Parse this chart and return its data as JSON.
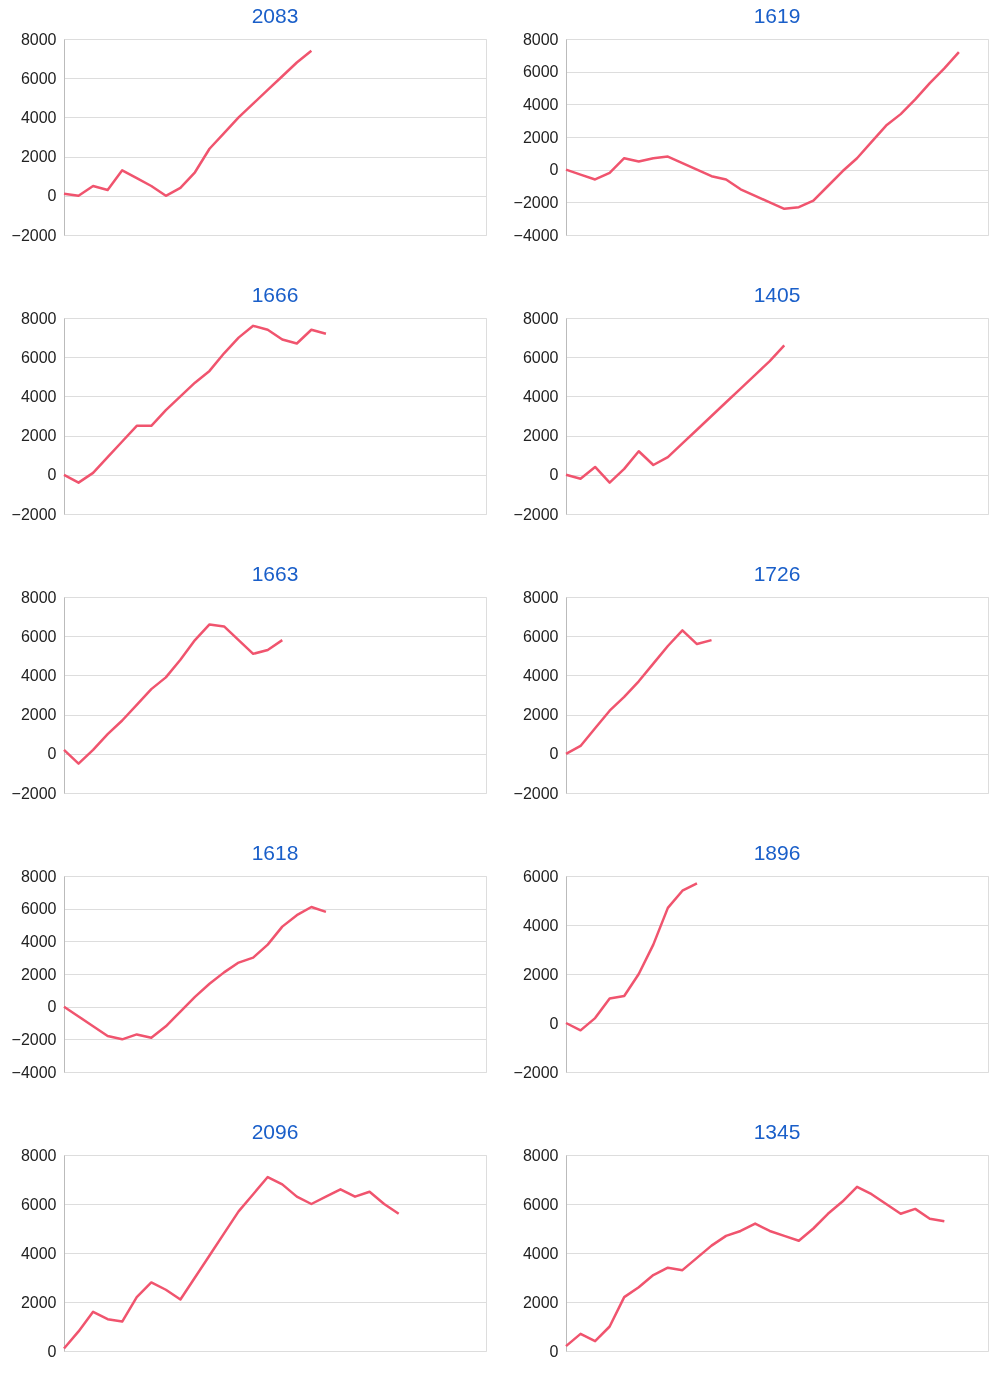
{
  "chart_data": [
    {
      "type": "line",
      "title": "2083",
      "categories": [
        null,
        null,
        null,
        null,
        null,
        null,
        null,
        null,
        null,
        null,
        null,
        null,
        null,
        null,
        null,
        null,
        null,
        null,
        null,
        null,
        null,
        null,
        null,
        null,
        null,
        null,
        null,
        null,
        null,
        null
      ],
      "ylim": [
        -2000,
        8000
      ],
      "yticks": [
        -2000,
        0,
        2000,
        4000,
        6000,
        8000
      ],
      "grid": "y",
      "tick_labels": "y",
      "series": [
        {
          "color": "#f0546e",
          "values": [
            100,
            0,
            500,
            300,
            1300,
            900,
            500,
            0,
            400,
            1200,
            2400,
            3200,
            4000,
            4700,
            5400,
            6100,
            6800,
            7400,
            null,
            null,
            null,
            null,
            null,
            null,
            null,
            null,
            null,
            null,
            null,
            null
          ]
        }
      ]
    },
    {
      "type": "line",
      "title": "1619",
      "categories": [
        null,
        null,
        null,
        null,
        null,
        null,
        null,
        null,
        null,
        null,
        null,
        null,
        null,
        null,
        null,
        null,
        null,
        null,
        null,
        null,
        null,
        null,
        null,
        null,
        null,
        null,
        null,
        null,
        null,
        null
      ],
      "ylim": [
        -4000,
        8000
      ],
      "yticks": [
        -4000,
        -2000,
        0,
        2000,
        4000,
        6000,
        8000
      ],
      "grid": "y",
      "tick_labels": "y",
      "series": [
        {
          "color": "#f0546e",
          "values": [
            0,
            -300,
            -600,
            -200,
            700,
            500,
            700,
            800,
            400,
            0,
            -400,
            -600,
            -1200,
            -1600,
            -2000,
            -2400,
            -2300,
            -1900,
            -1000,
            -100,
            700,
            1700,
            2700,
            3400,
            4300,
            5300,
            6200,
            7200,
            null,
            null
          ]
        }
      ]
    },
    {
      "type": "line",
      "title": "1666",
      "categories": [
        null,
        null,
        null,
        null,
        null,
        null,
        null,
        null,
        null,
        null,
        null,
        null,
        null,
        null,
        null,
        null,
        null,
        null,
        null,
        null,
        null,
        null,
        null,
        null,
        null,
        null,
        null,
        null,
        null,
        null
      ],
      "ylim": [
        -2000,
        8000
      ],
      "yticks": [
        -2000,
        0,
        2000,
        4000,
        6000,
        8000
      ],
      "grid": "y",
      "tick_labels": "y",
      "series": [
        {
          "color": "#f0546e",
          "values": [
            0,
            -400,
            100,
            900,
            1700,
            2500,
            2500,
            3300,
            4000,
            4700,
            5300,
            6200,
            7000,
            7600,
            7400,
            6900,
            6700,
            7400,
            7200,
            null,
            null,
            null,
            null,
            null,
            null,
            null,
            null,
            null,
            null,
            null
          ]
        }
      ]
    },
    {
      "type": "line",
      "title": "1405",
      "categories": [
        null,
        null,
        null,
        null,
        null,
        null,
        null,
        null,
        null,
        null,
        null,
        null,
        null,
        null,
        null,
        null,
        null,
        null,
        null,
        null,
        null,
        null,
        null,
        null,
        null,
        null,
        null,
        null,
        null,
        null
      ],
      "ylim": [
        -2000,
        8000
      ],
      "yticks": [
        -2000,
        0,
        2000,
        4000,
        6000,
        8000
      ],
      "grid": "y",
      "tick_labels": "y",
      "series": [
        {
          "color": "#f0546e",
          "values": [
            0,
            -200,
            400,
            -400,
            300,
            1200,
            500,
            900,
            1600,
            2300,
            3000,
            3700,
            4400,
            5100,
            5800,
            6600,
            null,
            null,
            null,
            null,
            null,
            null,
            null,
            null,
            null,
            null,
            null,
            null,
            null,
            null
          ]
        }
      ]
    },
    {
      "type": "line",
      "title": "1663",
      "categories": [
        null,
        null,
        null,
        null,
        null,
        null,
        null,
        null,
        null,
        null,
        null,
        null,
        null,
        null,
        null,
        null,
        null,
        null,
        null,
        null,
        null,
        null,
        null,
        null,
        null,
        null,
        null,
        null,
        null,
        null
      ],
      "ylim": [
        -2000,
        8000
      ],
      "yticks": [
        -2000,
        0,
        2000,
        4000,
        6000,
        8000
      ],
      "grid": "y",
      "tick_labels": "y",
      "series": [
        {
          "color": "#f0546e",
          "values": [
            200,
            -500,
            200,
            1000,
            1700,
            2500,
            3300,
            3900,
            4800,
            5800,
            6600,
            6500,
            5800,
            5100,
            5300,
            5800,
            null,
            null,
            null,
            null,
            null,
            null,
            null,
            null,
            null,
            null,
            null,
            null,
            null,
            null
          ]
        }
      ]
    },
    {
      "type": "line",
      "title": "1726",
      "categories": [
        null,
        null,
        null,
        null,
        null,
        null,
        null,
        null,
        null,
        null,
        null,
        null,
        null,
        null,
        null,
        null,
        null,
        null,
        null,
        null,
        null,
        null,
        null,
        null,
        null,
        null,
        null,
        null,
        null,
        null
      ],
      "ylim": [
        -2000,
        8000
      ],
      "yticks": [
        -2000,
        0,
        2000,
        4000,
        6000,
        8000
      ],
      "grid": "y",
      "tick_labels": "y",
      "series": [
        {
          "color": "#f0546e",
          "values": [
            0,
            400,
            1300,
            2200,
            2900,
            3700,
            4600,
            5500,
            6300,
            5600,
            5800,
            null,
            null,
            null,
            null,
            null,
            null,
            null,
            null,
            null,
            null,
            null,
            null,
            null,
            null,
            null,
            null,
            null,
            null,
            null
          ]
        }
      ]
    },
    {
      "type": "line",
      "title": "1618",
      "categories": [
        null,
        null,
        null,
        null,
        null,
        null,
        null,
        null,
        null,
        null,
        null,
        null,
        null,
        null,
        null,
        null,
        null,
        null,
        null,
        null,
        null,
        null,
        null,
        null,
        null,
        null,
        null,
        null,
        null,
        null
      ],
      "ylim": [
        -4000,
        8000
      ],
      "yticks": [
        -4000,
        -2000,
        0,
        2000,
        4000,
        6000,
        8000
      ],
      "grid": "y",
      "tick_labels": "y",
      "series": [
        {
          "color": "#f0546e",
          "values": [
            0,
            -600,
            -1200,
            -1800,
            -2000,
            -1700,
            -1900,
            -1200,
            -300,
            600,
            1400,
            2100,
            2700,
            3000,
            3800,
            4900,
            5600,
            6100,
            5800,
            null,
            null,
            null,
            null,
            null,
            null,
            null,
            null,
            null,
            null,
            null
          ]
        }
      ]
    },
    {
      "type": "line",
      "title": "1896",
      "categories": [
        null,
        null,
        null,
        null,
        null,
        null,
        null,
        null,
        null,
        null,
        null,
        null,
        null,
        null,
        null,
        null,
        null,
        null,
        null,
        null,
        null,
        null,
        null,
        null,
        null,
        null,
        null,
        null,
        null,
        null
      ],
      "ylim": [
        -2000,
        6000
      ],
      "yticks": [
        -2000,
        0,
        2000,
        4000,
        6000
      ],
      "grid": "y",
      "tick_labels": "y",
      "series": [
        {
          "color": "#f0546e",
          "values": [
            0,
            -300,
            200,
            1000,
            1100,
            2000,
            3200,
            4700,
            5400,
            5700,
            null,
            null,
            null,
            null,
            null,
            null,
            null,
            null,
            null,
            null,
            null,
            null,
            null,
            null,
            null,
            null,
            null,
            null,
            null,
            null
          ]
        }
      ]
    },
    {
      "type": "line",
      "title": "2096",
      "categories": [
        null,
        null,
        null,
        null,
        null,
        null,
        null,
        null,
        null,
        null,
        null,
        null,
        null,
        null,
        null,
        null,
        null,
        null,
        null,
        null,
        null,
        null,
        null,
        null,
        null,
        null,
        null,
        null,
        null,
        null
      ],
      "ylim": [
        0,
        8000
      ],
      "yticks": [
        0,
        2000,
        4000,
        6000,
        8000
      ],
      "grid": "y",
      "tick_labels": "y",
      "series": [
        {
          "color": "#f0546e",
          "values": [
            100,
            800,
            1600,
            1300,
            1200,
            2200,
            2800,
            2500,
            2100,
            3000,
            3900,
            4800,
            5700,
            6400,
            7100,
            6800,
            6300,
            6000,
            6300,
            6600,
            6300,
            6500,
            6000,
            5600,
            null,
            null,
            null,
            null,
            null,
            null
          ]
        }
      ]
    },
    {
      "type": "line",
      "title": "1345",
      "categories": [
        null,
        null,
        null,
        null,
        null,
        null,
        null,
        null,
        null,
        null,
        null,
        null,
        null,
        null,
        null,
        null,
        null,
        null,
        null,
        null,
        null,
        null,
        null,
        null,
        null,
        null,
        null,
        null,
        null,
        null
      ],
      "ylim": [
        0,
        8000
      ],
      "yticks": [
        0,
        2000,
        4000,
        6000,
        8000
      ],
      "grid": "y",
      "tick_labels": "y",
      "series": [
        {
          "color": "#f0546e",
          "values": [
            200,
            700,
            400,
            1000,
            2200,
            2600,
            3100,
            3400,
            3300,
            3800,
            4300,
            4700,
            4900,
            5200,
            4900,
            4700,
            4500,
            5000,
            5600,
            6100,
            6700,
            6400,
            6000,
            5600,
            5800,
            5400,
            5300,
            null,
            null,
            null
          ]
        }
      ]
    }
  ]
}
